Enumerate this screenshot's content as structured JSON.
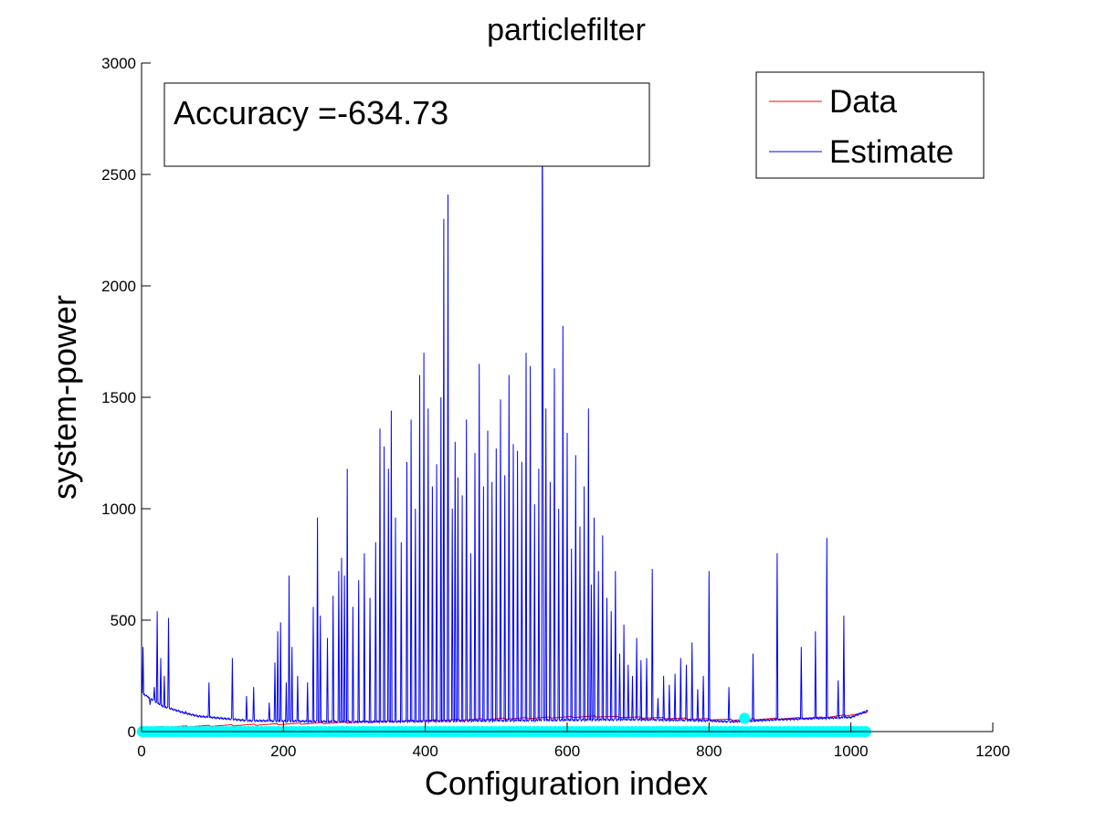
{
  "chart_data": {
    "type": "line",
    "title": "particlefilter",
    "xlabel": "Configuration index",
    "ylabel": "system-power",
    "xlim": [
      0,
      1200
    ],
    "ylim": [
      0,
      3000
    ],
    "xticks": [
      0,
      200,
      400,
      600,
      800,
      1000,
      1200
    ],
    "yticks": [
      0,
      500,
      1000,
      1500,
      2000,
      2500,
      3000
    ],
    "grid": false,
    "legend_position": "top-right",
    "annotation": "Accuracy =-634.73",
    "series": [
      {
        "name": "Data",
        "color": "#ff0000",
        "style": "line",
        "x": [
          0,
          64,
          128,
          192,
          256,
          320,
          384,
          448,
          512,
          576,
          640,
          704,
          768,
          832,
          896,
          960,
          1024
        ],
        "y": [
          15,
          20,
          25,
          30,
          35,
          40,
          45,
          50,
          55,
          60,
          65,
          60,
          55,
          50,
          55,
          60,
          80
        ]
      },
      {
        "name": "Estimate",
        "color": "#0000ff",
        "style": "spiky-line",
        "x_start": 1,
        "x_end": 1024,
        "base_x": [
          0,
          30,
          60,
          80,
          150,
          300,
          500,
          700,
          800,
          830,
          900,
          1000,
          1024
        ],
        "base_y": [
          170,
          110,
          80,
          65,
          45,
          40,
          45,
          50,
          45,
          40,
          50,
          60,
          90
        ],
        "peaks_x": [
          2,
          12,
          18,
          22,
          27,
          32,
          38,
          62,
          95,
          128,
          148,
          158,
          180,
          188,
          192,
          196,
          204,
          208,
          212,
          220,
          234,
          242,
          248,
          252,
          262,
          270,
          278,
          282,
          286,
          290,
          298,
          306,
          314,
          322,
          330,
          336,
          342,
          348,
          352,
          358,
          366,
          374,
          380,
          386,
          392,
          398,
          404,
          410,
          416,
          422,
          426,
          432,
          438,
          442,
          446,
          452,
          458,
          464,
          470,
          476,
          482,
          488,
          494,
          500,
          506,
          512,
          518,
          524,
          530,
          536,
          542,
          548,
          554,
          560,
          566,
          570,
          576,
          582,
          588,
          594,
          600,
          606,
          612,
          618,
          624,
          630,
          634,
          638,
          644,
          650,
          656,
          662,
          668,
          674,
          680,
          686,
          692,
          698,
          704,
          712,
          720,
          728,
          736,
          744,
          752,
          760,
          768,
          776,
          784,
          792,
          800,
          828,
          862,
          896,
          930,
          950,
          966,
          982,
          990
        ],
        "peaks_y": [
          380,
          120,
          200,
          540,
          330,
          250,
          510,
          90,
          220,
          330,
          160,
          200,
          130,
          310,
          450,
          490,
          220,
          700,
          380,
          250,
          220,
          560,
          960,
          520,
          420,
          610,
          720,
          780,
          700,
          1180,
          560,
          680,
          800,
          600,
          850,
          1360,
          1280,
          1180,
          1440,
          960,
          850,
          1210,
          1400,
          1000,
          1600,
          1700,
          1450,
          1100,
          1200,
          1500,
          2300,
          2410,
          1000,
          1300,
          1140,
          1060,
          1400,
          800,
          1250,
          1650,
          1100,
          1350,
          1120,
          1270,
          1490,
          1150,
          1600,
          1290,
          1260,
          1210,
          1700,
          1640,
          1020,
          1180,
          1470,
          1450,
          1120,
          1630,
          1000,
          1820,
          1340,
          820,
          1240,
          920,
          1100,
          1450,
          660,
          960,
          720,
          880,
          600,
          540,
          720,
          350,
          480,
          300,
          250,
          420,
          320,
          330,
          730,
          150,
          250,
          210,
          260,
          330,
          300,
          400,
          190,
          250,
          720,
          200,
          350,
          800,
          380,
          450,
          870,
          230,
          520
        ],
        "spike_x": 565,
        "spike_y": 2880
      },
      {
        "name": "",
        "color": "#00ffff",
        "style": "markers",
        "x_start": 1,
        "x_end": 1024,
        "y": 0,
        "outlier_x": 850,
        "outlier_y": 60
      }
    ]
  }
}
